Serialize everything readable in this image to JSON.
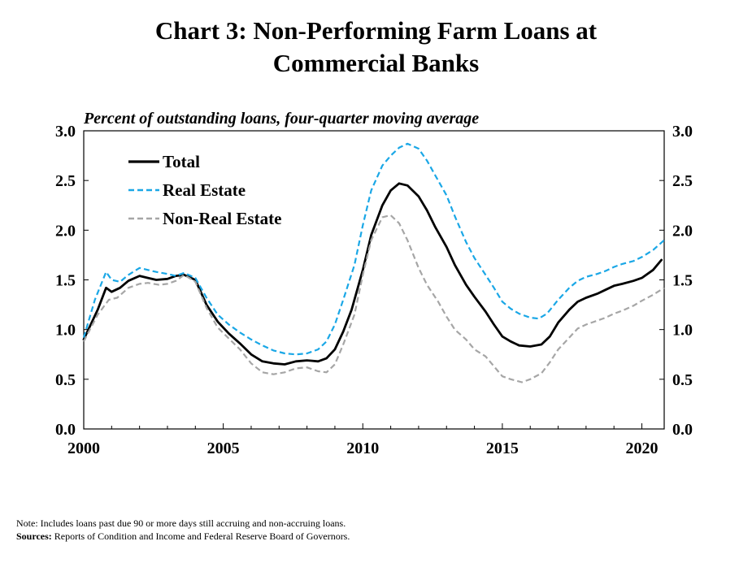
{
  "chart_data": {
    "type": "line",
    "title": "Chart 3: Non-Performing Farm Loans at Commercial Banks",
    "title_lines": [
      "Chart 3: Non-Performing  Farm Loans at",
      "Commercial  Banks"
    ],
    "ylabel": "Percent of outstanding loans, four-quarter moving average",
    "xlim": [
      2000,
      2020.8
    ],
    "ylim": [
      0,
      3.0
    ],
    "x_ticks": [
      2000,
      2005,
      2010,
      2015,
      2020
    ],
    "x_tick_labels": [
      "2000",
      "2005",
      "2010",
      "2015",
      "2020"
    ],
    "y_ticks": [
      0,
      0.5,
      1.0,
      1.5,
      2.0,
      2.5,
      3.0
    ],
    "y_tick_labels": [
      "0.0",
      "0.5",
      "1.0",
      "1.5",
      "2.0",
      "2.5",
      "3.0"
    ],
    "secondary_y_axis": true,
    "grid": false,
    "legend_position": "top-left",
    "series": [
      {
        "name": "Total",
        "color": "#000000",
        "style": "solid",
        "points": [
          [
            2000.0,
            0.9
          ],
          [
            2000.5,
            1.2
          ],
          [
            2000.8,
            1.42
          ],
          [
            2001.0,
            1.38
          ],
          [
            2001.3,
            1.42
          ],
          [
            2001.6,
            1.49
          ],
          [
            2002.0,
            1.54
          ],
          [
            2002.3,
            1.52
          ],
          [
            2002.6,
            1.5
          ],
          [
            2003.0,
            1.51
          ],
          [
            2003.3,
            1.54
          ],
          [
            2003.6,
            1.55
          ],
          [
            2004.0,
            1.5
          ],
          [
            2004.4,
            1.25
          ],
          [
            2004.8,
            1.08
          ],
          [
            2005.2,
            0.96
          ],
          [
            2005.6,
            0.86
          ],
          [
            2006.0,
            0.75
          ],
          [
            2006.4,
            0.68
          ],
          [
            2006.8,
            0.66
          ],
          [
            2007.2,
            0.65
          ],
          [
            2007.6,
            0.68
          ],
          [
            2008.0,
            0.69
          ],
          [
            2008.4,
            0.68
          ],
          [
            2008.7,
            0.71
          ],
          [
            2009.0,
            0.8
          ],
          [
            2009.3,
            0.98
          ],
          [
            2009.6,
            1.2
          ],
          [
            2010.0,
            1.6
          ],
          [
            2010.3,
            1.95
          ],
          [
            2010.7,
            2.25
          ],
          [
            2011.0,
            2.4
          ],
          [
            2011.3,
            2.47
          ],
          [
            2011.6,
            2.45
          ],
          [
            2012.0,
            2.34
          ],
          [
            2012.3,
            2.2
          ],
          [
            2012.6,
            2.03
          ],
          [
            2013.0,
            1.83
          ],
          [
            2013.3,
            1.65
          ],
          [
            2013.7,
            1.45
          ],
          [
            2014.0,
            1.33
          ],
          [
            2014.4,
            1.18
          ],
          [
            2014.7,
            1.05
          ],
          [
            2015.0,
            0.93
          ],
          [
            2015.3,
            0.88
          ],
          [
            2015.6,
            0.84
          ],
          [
            2016.0,
            0.83
          ],
          [
            2016.4,
            0.85
          ],
          [
            2016.7,
            0.93
          ],
          [
            2017.0,
            1.07
          ],
          [
            2017.4,
            1.2
          ],
          [
            2017.7,
            1.28
          ],
          [
            2018.0,
            1.32
          ],
          [
            2018.4,
            1.36
          ],
          [
            2018.7,
            1.4
          ],
          [
            2019.0,
            1.44
          ],
          [
            2019.3,
            1.46
          ],
          [
            2019.7,
            1.49
          ],
          [
            2020.0,
            1.52
          ],
          [
            2020.4,
            1.6
          ],
          [
            2020.7,
            1.7
          ]
        ]
      },
      {
        "name": "Real Estate",
        "color": "#1aa7e6",
        "style": "dashed",
        "points": [
          [
            2000.0,
            0.92
          ],
          [
            2000.4,
            1.3
          ],
          [
            2000.8,
            1.58
          ],
          [
            2001.0,
            1.5
          ],
          [
            2001.3,
            1.48
          ],
          [
            2001.6,
            1.55
          ],
          [
            2002.0,
            1.62
          ],
          [
            2002.3,
            1.6
          ],
          [
            2002.6,
            1.58
          ],
          [
            2003.0,
            1.56
          ],
          [
            2003.3,
            1.54
          ],
          [
            2003.6,
            1.57
          ],
          [
            2004.0,
            1.52
          ],
          [
            2004.4,
            1.32
          ],
          [
            2004.8,
            1.15
          ],
          [
            2005.2,
            1.05
          ],
          [
            2005.6,
            0.97
          ],
          [
            2006.0,
            0.9
          ],
          [
            2006.4,
            0.84
          ],
          [
            2006.8,
            0.79
          ],
          [
            2007.2,
            0.76
          ],
          [
            2007.6,
            0.75
          ],
          [
            2008.0,
            0.76
          ],
          [
            2008.4,
            0.8
          ],
          [
            2008.7,
            0.88
          ],
          [
            2009.0,
            1.05
          ],
          [
            2009.3,
            1.3
          ],
          [
            2009.7,
            1.65
          ],
          [
            2010.0,
            2.05
          ],
          [
            2010.3,
            2.4
          ],
          [
            2010.7,
            2.65
          ],
          [
            2011.0,
            2.75
          ],
          [
            2011.3,
            2.83
          ],
          [
            2011.6,
            2.87
          ],
          [
            2012.0,
            2.82
          ],
          [
            2012.3,
            2.7
          ],
          [
            2012.6,
            2.55
          ],
          [
            2013.0,
            2.35
          ],
          [
            2013.3,
            2.14
          ],
          [
            2013.7,
            1.88
          ],
          [
            2014.0,
            1.72
          ],
          [
            2014.4,
            1.55
          ],
          [
            2014.7,
            1.42
          ],
          [
            2015.0,
            1.28
          ],
          [
            2015.3,
            1.21
          ],
          [
            2015.6,
            1.16
          ],
          [
            2016.0,
            1.12
          ],
          [
            2016.3,
            1.11
          ],
          [
            2016.6,
            1.16
          ],
          [
            2017.0,
            1.3
          ],
          [
            2017.4,
            1.42
          ],
          [
            2017.7,
            1.49
          ],
          [
            2018.0,
            1.53
          ],
          [
            2018.4,
            1.56
          ],
          [
            2018.7,
            1.59
          ],
          [
            2019.0,
            1.63
          ],
          [
            2019.3,
            1.66
          ],
          [
            2019.7,
            1.69
          ],
          [
            2020.0,
            1.73
          ],
          [
            2020.4,
            1.8
          ],
          [
            2020.8,
            1.9
          ]
        ]
      },
      {
        "name": "Non-Real Estate",
        "color": "#a6a6a6",
        "style": "dashed",
        "points": [
          [
            2000.0,
            0.88
          ],
          [
            2000.5,
            1.15
          ],
          [
            2000.9,
            1.3
          ],
          [
            2001.2,
            1.32
          ],
          [
            2001.6,
            1.42
          ],
          [
            2002.0,
            1.46
          ],
          [
            2002.3,
            1.47
          ],
          [
            2002.7,
            1.45
          ],
          [
            2003.0,
            1.46
          ],
          [
            2003.3,
            1.49
          ],
          [
            2003.6,
            1.55
          ],
          [
            2004.0,
            1.48
          ],
          [
            2004.4,
            1.22
          ],
          [
            2004.8,
            1.02
          ],
          [
            2005.2,
            0.91
          ],
          [
            2005.6,
            0.8
          ],
          [
            2006.0,
            0.66
          ],
          [
            2006.4,
            0.57
          ],
          [
            2006.8,
            0.55
          ],
          [
            2007.2,
            0.57
          ],
          [
            2007.6,
            0.61
          ],
          [
            2008.0,
            0.62
          ],
          [
            2008.4,
            0.58
          ],
          [
            2008.7,
            0.57
          ],
          [
            2009.0,
            0.65
          ],
          [
            2009.3,
            0.85
          ],
          [
            2009.7,
            1.15
          ],
          [
            2010.0,
            1.55
          ],
          [
            2010.3,
            1.9
          ],
          [
            2010.7,
            2.13
          ],
          [
            2011.0,
            2.15
          ],
          [
            2011.3,
            2.07
          ],
          [
            2011.6,
            1.9
          ],
          [
            2012.0,
            1.62
          ],
          [
            2012.3,
            1.45
          ],
          [
            2012.7,
            1.28
          ],
          [
            2013.0,
            1.13
          ],
          [
            2013.3,
            1.0
          ],
          [
            2013.7,
            0.9
          ],
          [
            2014.0,
            0.8
          ],
          [
            2014.4,
            0.73
          ],
          [
            2014.7,
            0.63
          ],
          [
            2015.0,
            0.53
          ],
          [
            2015.3,
            0.5
          ],
          [
            2015.7,
            0.47
          ],
          [
            2016.0,
            0.5
          ],
          [
            2016.4,
            0.56
          ],
          [
            2016.7,
            0.67
          ],
          [
            2017.0,
            0.8
          ],
          [
            2017.4,
            0.92
          ],
          [
            2017.7,
            1.01
          ],
          [
            2018.0,
            1.05
          ],
          [
            2018.4,
            1.09
          ],
          [
            2018.7,
            1.12
          ],
          [
            2019.0,
            1.16
          ],
          [
            2019.3,
            1.19
          ],
          [
            2019.7,
            1.24
          ],
          [
            2020.0,
            1.29
          ],
          [
            2020.4,
            1.35
          ],
          [
            2020.8,
            1.42
          ]
        ]
      }
    ]
  },
  "notes": {
    "note_text": "Note: Includes loans past due 90 or more days still accruing and non-accruing loans.",
    "sources_label": "Sources:",
    "sources_text": " Reports of Condition and Income and Federal Reserve Board of Governors."
  }
}
